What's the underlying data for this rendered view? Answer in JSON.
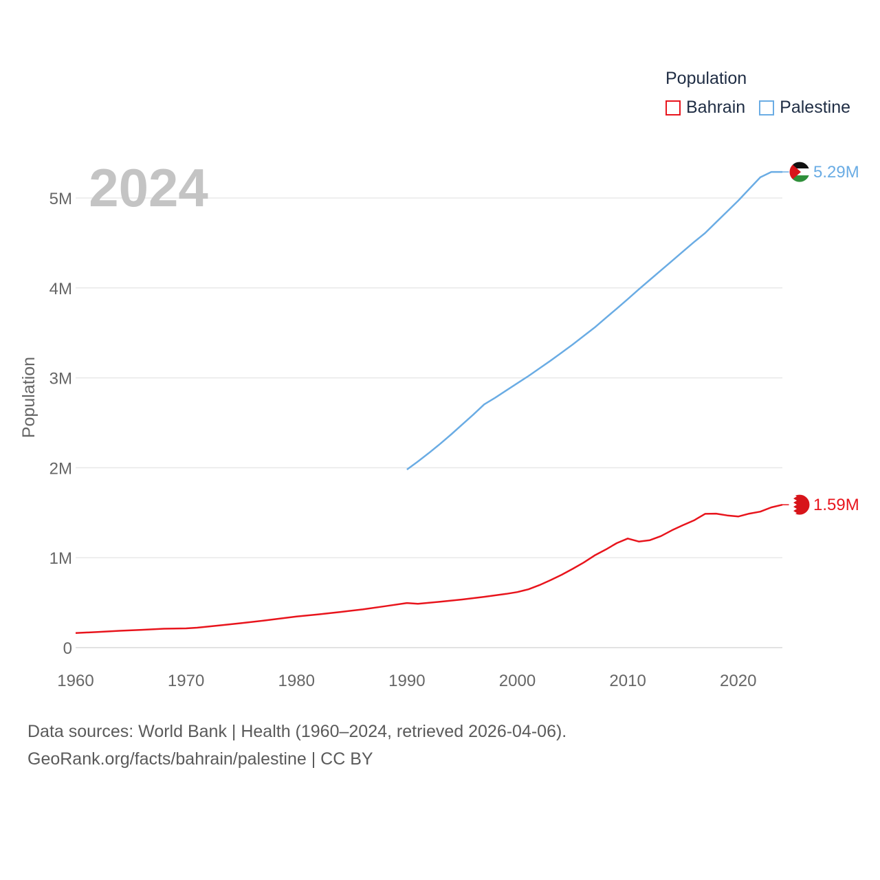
{
  "chart_data": {
    "type": "line",
    "title": "Population",
    "year_label": "2024",
    "xlabel": "",
    "ylabel": "Population",
    "xlim": [
      1960,
      2024
    ],
    "ylim": [
      0,
      5000000
    ],
    "x_ticks": [
      1960,
      1970,
      1980,
      1990,
      2000,
      2010,
      2020
    ],
    "y_ticks": [
      {
        "value": 0,
        "label": "0"
      },
      {
        "value": 1000000,
        "label": "1M"
      },
      {
        "value": 2000000,
        "label": "2M"
      },
      {
        "value": 3000000,
        "label": "3M"
      },
      {
        "value": 4000000,
        "label": "4M"
      },
      {
        "value": 5000000,
        "label": "5M"
      }
    ],
    "series": [
      {
        "name": "Bahrain",
        "color": "#e8141c",
        "end_label": "1.59M",
        "flag": "bahrain-flag",
        "points": [
          [
            1960,
            162000
          ],
          [
            1962,
            174000
          ],
          [
            1964,
            187000
          ],
          [
            1966,
            198000
          ],
          [
            1968,
            210000
          ],
          [
            1970,
            214000
          ],
          [
            1971,
            222000
          ],
          [
            1973,
            246000
          ],
          [
            1975,
            272000
          ],
          [
            1977,
            300000
          ],
          [
            1979,
            330000
          ],
          [
            1980,
            346000
          ],
          [
            1982,
            370000
          ],
          [
            1984,
            397000
          ],
          [
            1986,
            425000
          ],
          [
            1988,
            460000
          ],
          [
            1990,
            496000
          ],
          [
            1991,
            488000
          ],
          [
            1993,
            510000
          ],
          [
            1995,
            535000
          ],
          [
            1997,
            565000
          ],
          [
            1999,
            598000
          ],
          [
            2000,
            618000
          ],
          [
            2001,
            648000
          ],
          [
            2002,
            695000
          ],
          [
            2003,
            750000
          ],
          [
            2004,
            810000
          ],
          [
            2005,
            875000
          ],
          [
            2006,
            946000
          ],
          [
            2007,
            1025000
          ],
          [
            2008,
            1090000
          ],
          [
            2009,
            1162000
          ],
          [
            2010,
            1213000
          ],
          [
            2011,
            1180000
          ],
          [
            2012,
            1195000
          ],
          [
            2013,
            1240000
          ],
          [
            2014,
            1305000
          ],
          [
            2015,
            1362000
          ],
          [
            2016,
            1415000
          ],
          [
            2017,
            1488000
          ],
          [
            2018,
            1490000
          ],
          [
            2019,
            1470000
          ],
          [
            2020,
            1458000
          ],
          [
            2021,
            1490000
          ],
          [
            2022,
            1512000
          ],
          [
            2023,
            1560000
          ],
          [
            2024,
            1589000
          ]
        ]
      },
      {
        "name": "Palestine",
        "color": "#6aace4",
        "end_label": "5.29M",
        "flag": "palestine-flag",
        "points": [
          [
            1990,
            1980000
          ],
          [
            1991,
            2070000
          ],
          [
            1992,
            2165000
          ],
          [
            1993,
            2265000
          ],
          [
            1994,
            2370000
          ],
          [
            1995,
            2480000
          ],
          [
            1996,
            2590000
          ],
          [
            1997,
            2705000
          ],
          [
            1998,
            2780000
          ],
          [
            1999,
            2860000
          ],
          [
            2000,
            2940000
          ],
          [
            2001,
            3020000
          ],
          [
            2002,
            3105000
          ],
          [
            2003,
            3190000
          ],
          [
            2004,
            3280000
          ],
          [
            2005,
            3370000
          ],
          [
            2006,
            3465000
          ],
          [
            2007,
            3560000
          ],
          [
            2008,
            3665000
          ],
          [
            2009,
            3770000
          ],
          [
            2010,
            3875000
          ],
          [
            2011,
            3985000
          ],
          [
            2012,
            4090000
          ],
          [
            2013,
            4195000
          ],
          [
            2014,
            4300000
          ],
          [
            2015,
            4405000
          ],
          [
            2016,
            4510000
          ],
          [
            2017,
            4610000
          ],
          [
            2018,
            4730000
          ],
          [
            2019,
            4850000
          ],
          [
            2020,
            4970000
          ],
          [
            2021,
            5100000
          ],
          [
            2022,
            5230000
          ],
          [
            2023,
            5290000
          ],
          [
            2024,
            5290000
          ]
        ]
      }
    ],
    "legend": {
      "title": "Population",
      "position": "top-right"
    }
  },
  "footer": {
    "line1": "Data sources: World Bank | Health (1960–2024, retrieved 2026-04-06).",
    "line2": "GeoRank.org/facts/bahrain/palestine | CC BY"
  }
}
